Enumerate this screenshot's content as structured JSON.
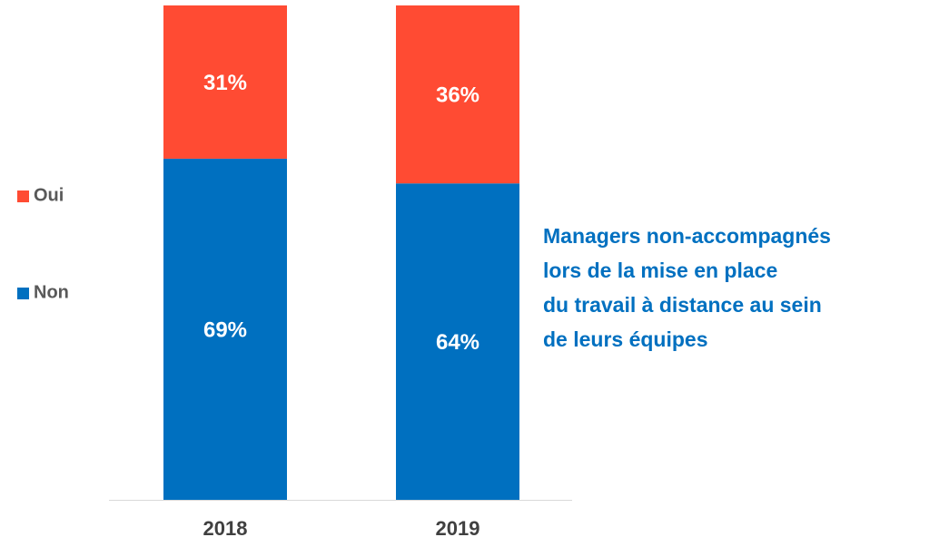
{
  "chart_data": {
    "type": "stacked_bar",
    "categories": [
      "2018",
      "2019"
    ],
    "series": [
      {
        "name": "Non",
        "color": "#0070c0",
        "values": [
          69,
          64
        ],
        "value_labels": [
          "69%",
          "64%"
        ]
      },
      {
        "name": "Oui",
        "color": "#ff4b33",
        "values": [
          31,
          36
        ],
        "value_labels": [
          "31%",
          "36%"
        ]
      }
    ],
    "ylim": [
      0,
      100
    ],
    "annotation": [
      "Managers non-accompagnés",
      "lors de la mise en place",
      "du travail à distance au sein",
      "de leurs équipes"
    ]
  }
}
